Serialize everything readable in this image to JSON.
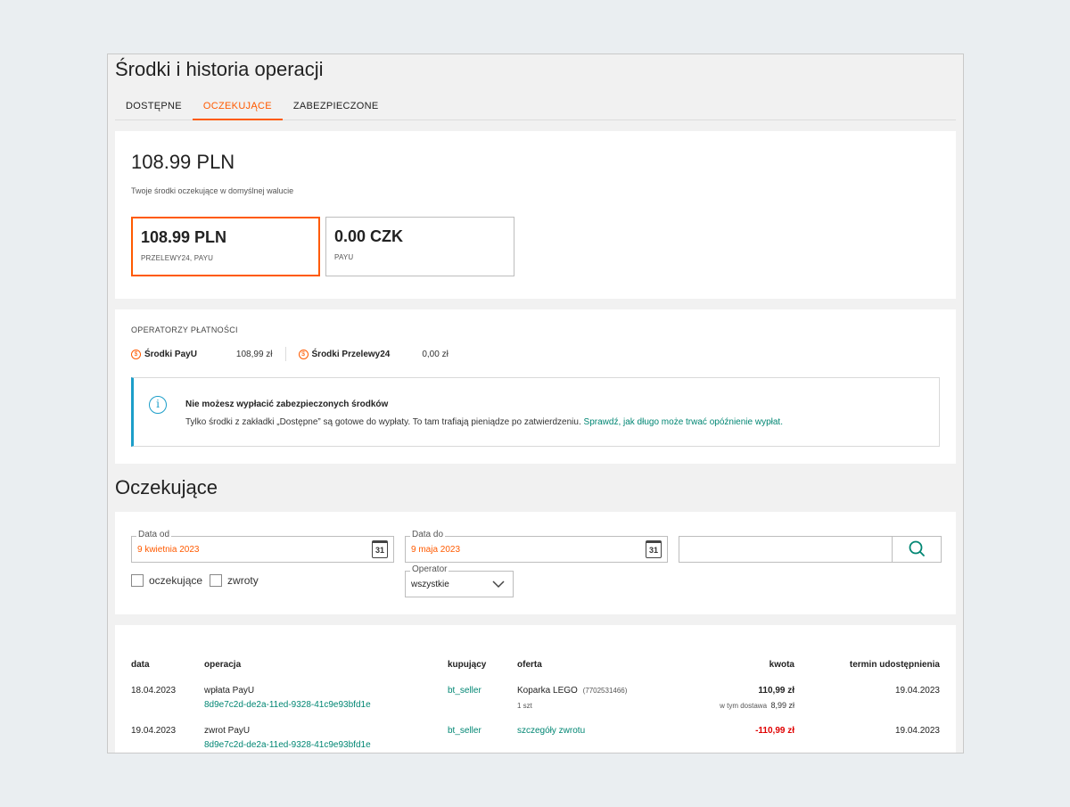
{
  "page": {
    "title": "Środki i historia operacji",
    "tabs": [
      {
        "label": "DOSTĘPNE"
      },
      {
        "label": "OCZEKUJĄCE"
      },
      {
        "label": "ZABEZPIECZONE"
      }
    ]
  },
  "summary": {
    "total": "108.99 PLN",
    "subtitle": "Twoje środki oczekujące w domyślnej walucie",
    "currencies": [
      {
        "amount": "108.99 PLN",
        "operators": "PRZELEWY24, PAYU"
      },
      {
        "amount": "0.00 CZK",
        "operators": "PAYU"
      }
    ]
  },
  "operators": {
    "label": "OPERATORZY PŁATNOŚCI",
    "items": [
      {
        "name": "Środki PayU",
        "value": "108,99 zł"
      },
      {
        "name": "Środki Przelewy24",
        "value": "0,00 zł"
      }
    ],
    "info": {
      "title": "Nie możesz wypłacić zabezpieczonych środków",
      "text": "Tylko środki z zakładki „Dostępne” są gotowe do wypłaty. To tam trafiają pieniądze po zatwierdzeniu. ",
      "link": "Sprawdź, jak długo może trwać opóźnienie wypłat."
    }
  },
  "pending": {
    "title": "Oczekujące",
    "filters": {
      "date_from_label": "Data od",
      "date_from": "9 kwietnia 2023",
      "date_to_label": "Data do",
      "date_to": "9 maja 2023",
      "calendar_day": "31",
      "search_value": "",
      "checkbox_pending": "oczekujące",
      "checkbox_returns": "zwroty",
      "operator_label": "Operator",
      "operator_value": "wszystkie"
    }
  },
  "table": {
    "headers": {
      "date": "data",
      "operation": "operacja",
      "buyer": "kupujący",
      "offer": "oferta",
      "amount": "kwota",
      "release": "termin udostępnienia"
    },
    "rows": [
      {
        "date": "18.04.2023",
        "operation": "wpłata PayU",
        "operation_id": "8d9e7c2d-de2a-11ed-9328-41c9e93bfd1e",
        "buyer": "bt_seller",
        "offer": "Koparka LEGO",
        "offer_id": "(7702531466)",
        "offer_qty": "1 szt",
        "amount": "110,99 zł",
        "delivery_label": "w tym dostawa",
        "delivery_value": "8,99 zł",
        "release": "19.04.2023"
      },
      {
        "date": "19.04.2023",
        "operation": "zwrot PayU",
        "operation_id": "8d9e7c2d-de2a-11ed-9328-41c9e93bfd1e",
        "buyer": "bt_seller",
        "offer": "szczegóły zwrotu",
        "amount": "-110,99 zł",
        "release": "19.04.2023"
      }
    ]
  },
  "colors": {
    "accent": "#ff5a00",
    "link": "#008673",
    "info": "#1c9ec9",
    "negative": "#e00000"
  }
}
